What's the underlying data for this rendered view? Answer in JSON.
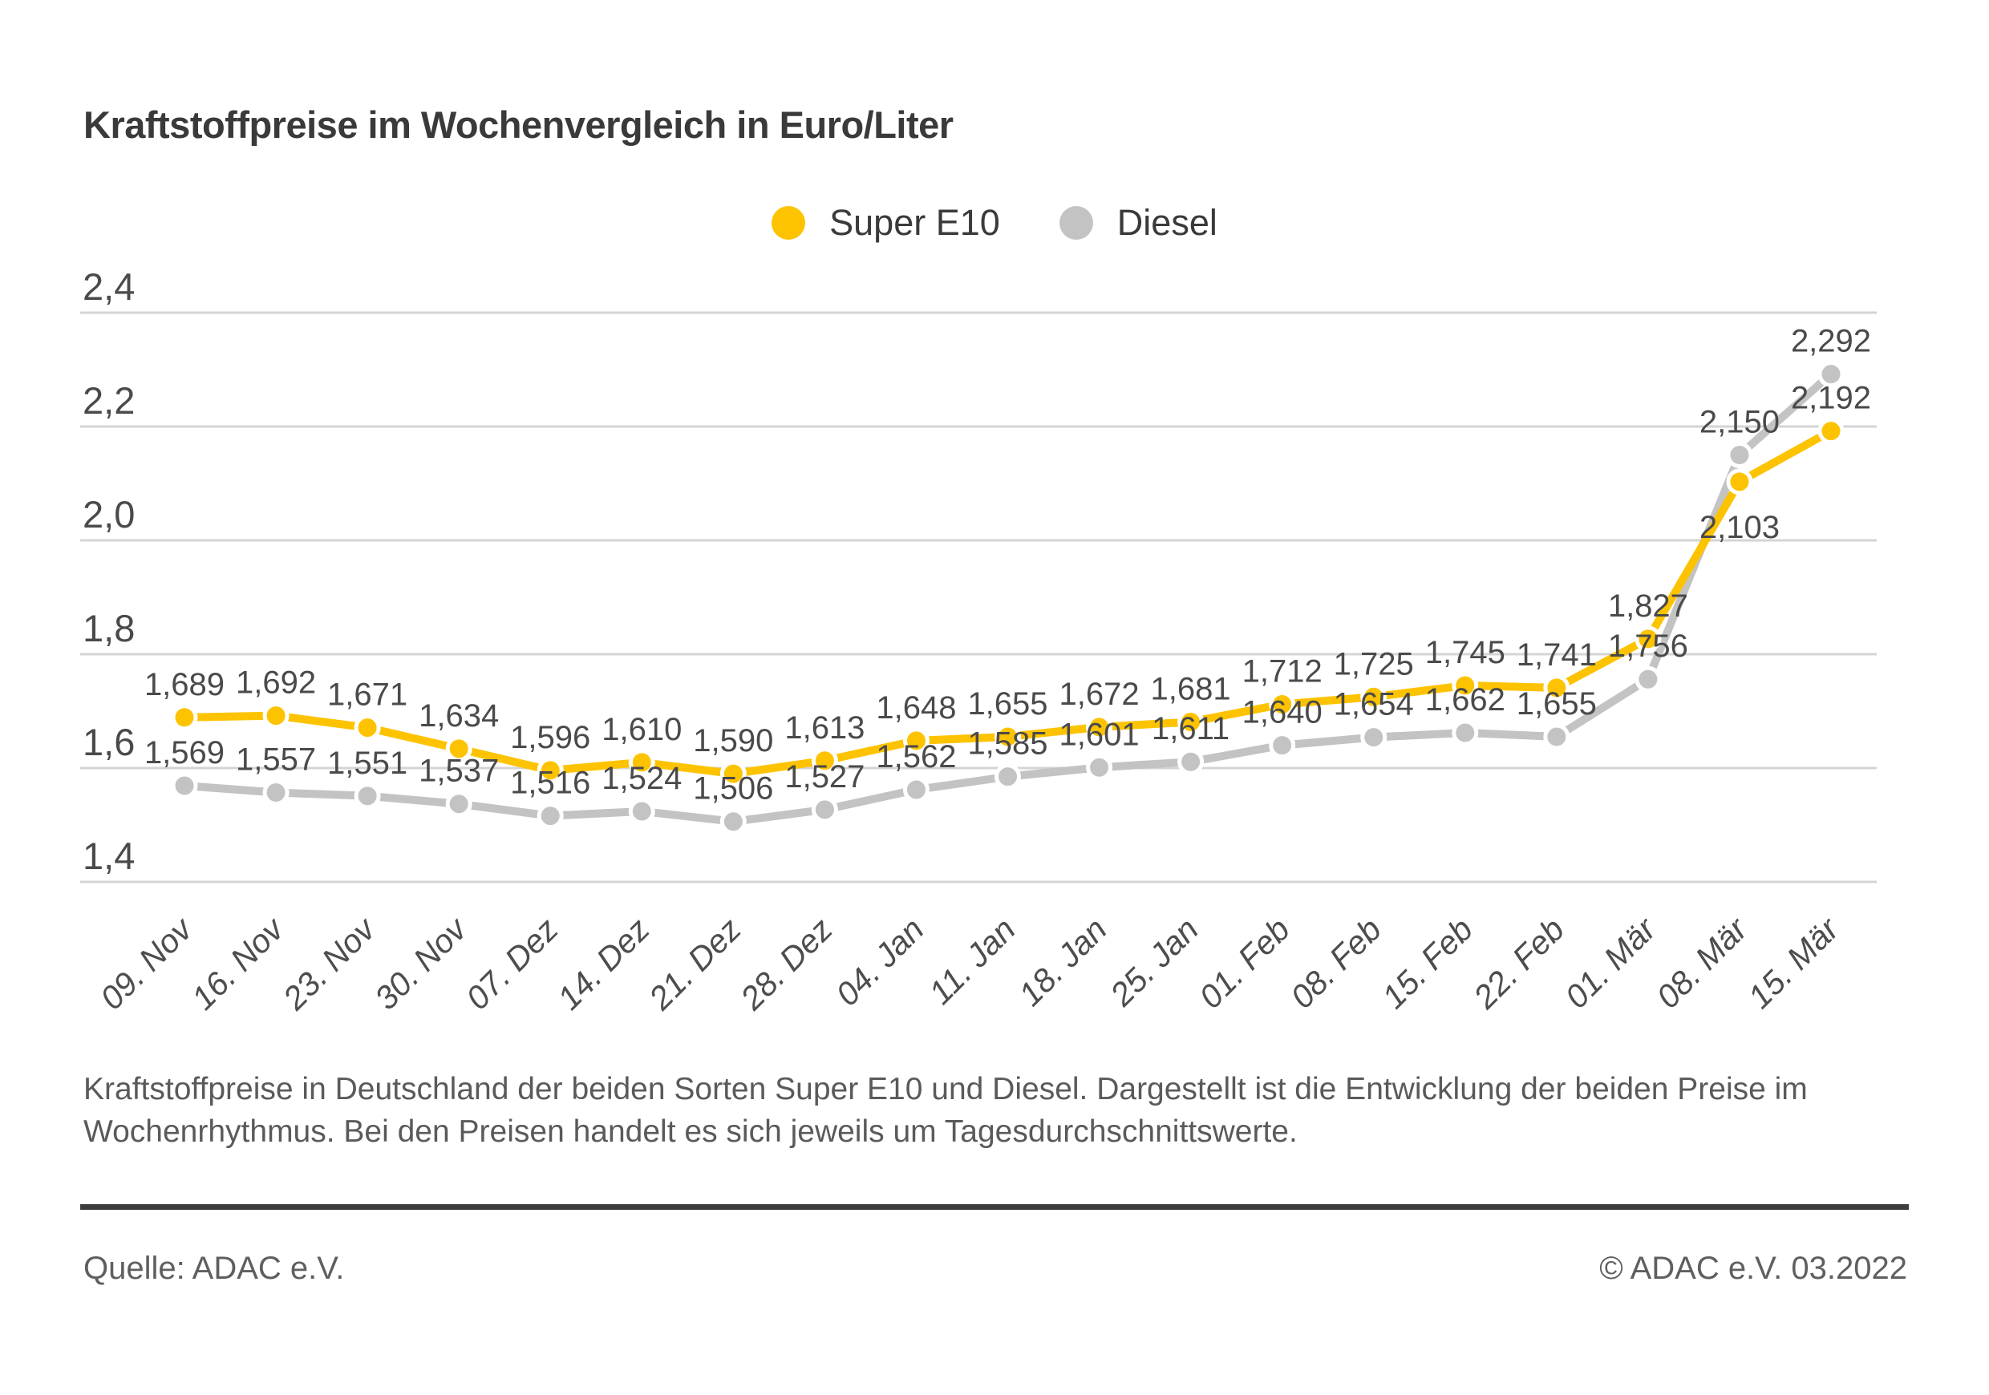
{
  "title": "Kraftstoffpreise im Wochenvergleich in Euro/Liter",
  "description_lines": [
    "Kraftstoffpreise in Deutschland der beiden Sorten Super E10 und Diesel. Dargestellt ist die Entwicklung der beiden Preise im",
    "Wochenrhythmus. Bei den Preisen handelt es sich jeweils um Tagesdurchschnittswerte."
  ],
  "footer": {
    "source": "Quelle: ADAC e.V.",
    "copyright": "© ADAC e.V. 03.2022"
  },
  "colors": {
    "super_e10": "#fdc300",
    "diesel": "#c3c3c3",
    "grid": "#d4d4d4",
    "axis_text": "#4a4a4a",
    "data_label_text": "#4a4a4a",
    "x_label_text": "#4d4d4d"
  },
  "chart_data": {
    "type": "line",
    "title": "Kraftstoffpreise im Wochenvergleich in Euro/Liter",
    "xlabel": "",
    "ylabel": "Euro/Liter",
    "ylim": [
      1.4,
      2.4
    ],
    "yticks": [
      1.4,
      1.6,
      1.8,
      2.0,
      2.2,
      2.4
    ],
    "grid": true,
    "legend_position": "top-center",
    "value_format": "german-comma-3-decimals",
    "categories": [
      "09. Nov",
      "16. Nov",
      "23. Nov",
      "30. Nov",
      "07. Dez",
      "14. Dez",
      "21. Dez",
      "28. Dez",
      "04. Jan",
      "11. Jan",
      "18. Jan",
      "25. Jan",
      "01. Feb",
      "08. Feb",
      "15. Feb",
      "22. Feb",
      "01. Mär",
      "08. Mär",
      "15. Mär"
    ],
    "series": [
      {
        "name": "Super E10",
        "color_key": "super_e10",
        "values": [
          1.689,
          1.692,
          1.671,
          1.634,
          1.596,
          1.61,
          1.59,
          1.613,
          1.648,
          1.655,
          1.672,
          1.681,
          1.712,
          1.725,
          1.745,
          1.741,
          1.827,
          2.103,
          2.192
        ]
      },
      {
        "name": "Diesel",
        "color_key": "diesel",
        "values": [
          1.569,
          1.557,
          1.551,
          1.537,
          1.516,
          1.524,
          1.506,
          1.527,
          1.562,
          1.585,
          1.601,
          1.611,
          1.64,
          1.654,
          1.662,
          1.655,
          1.756,
          2.15,
          2.292
        ]
      }
    ]
  }
}
